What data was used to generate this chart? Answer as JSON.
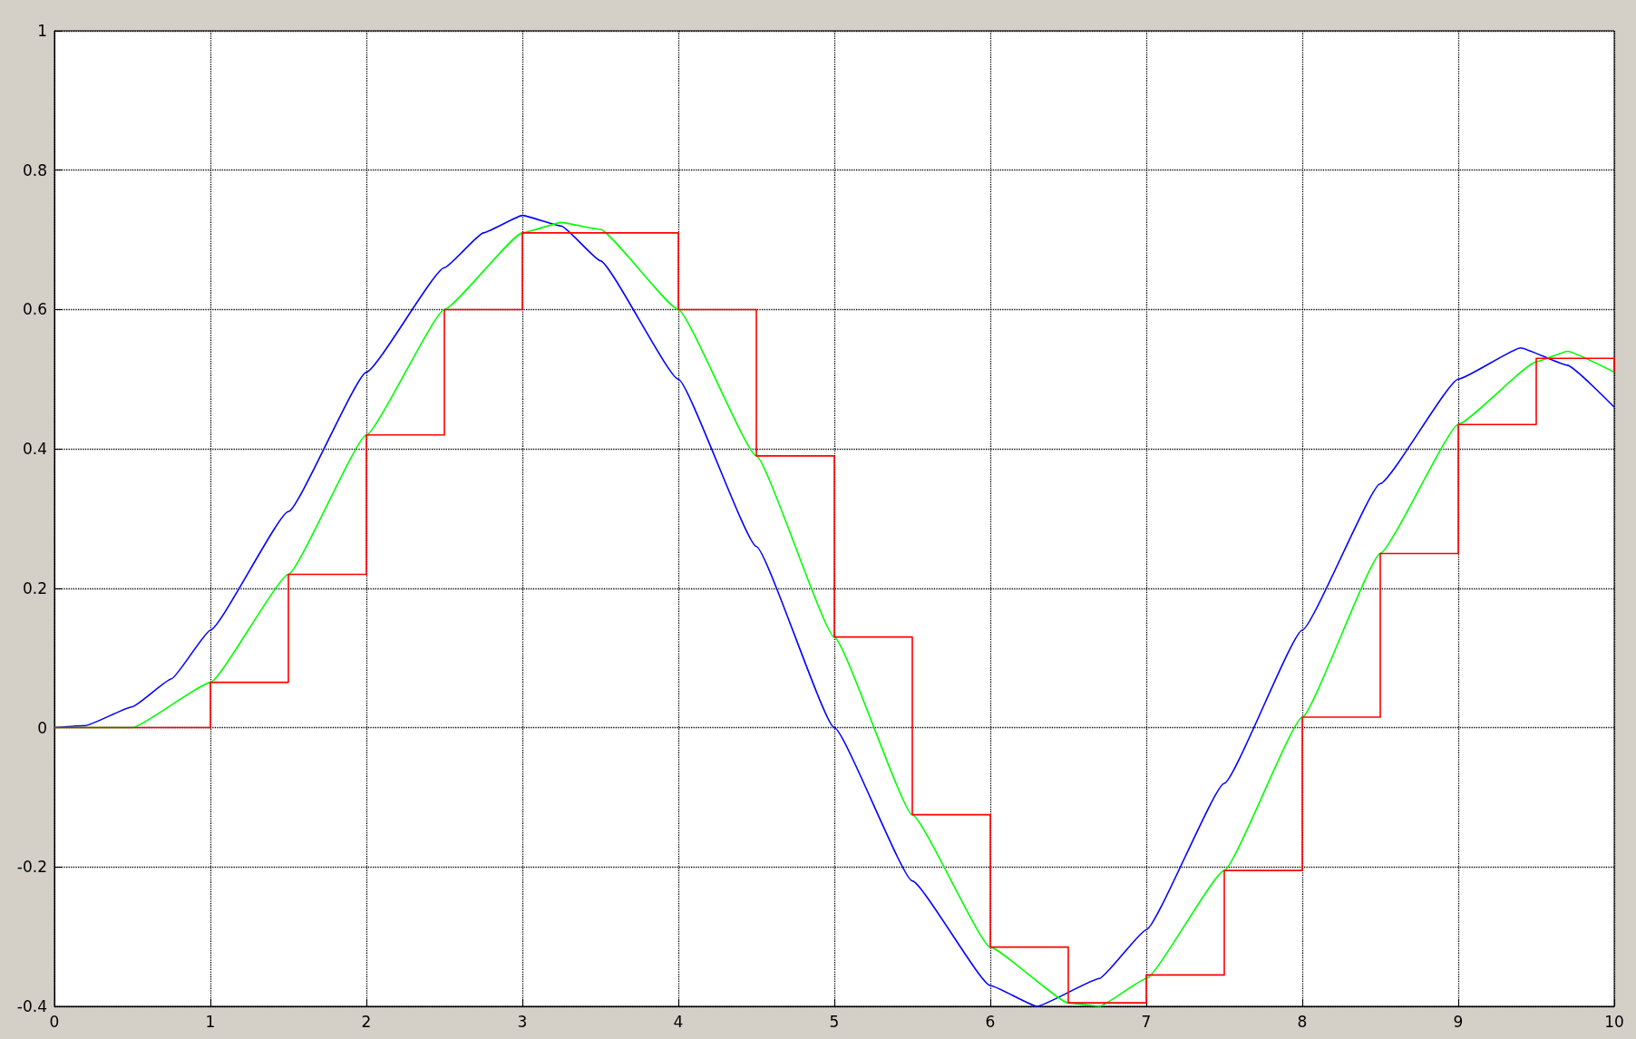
{
  "chart_data": {
    "type": "line",
    "xlim": [
      0,
      10
    ],
    "xticks": [
      0,
      1,
      2,
      3,
      4,
      5,
      6,
      7,
      8,
      9,
      10
    ],
    "ylim": [
      -0.4,
      1
    ],
    "yticks": [
      -0.4,
      -0.2,
      0,
      0.2,
      0.4,
      0.6,
      0.8,
      1
    ],
    "grid": true,
    "marker": "none",
    "line_style": "solid",
    "series": [
      {
        "color": "#0000ff",
        "x": [
          0,
          0.2,
          0.5,
          0.75,
          1,
          1.5,
          2,
          2.5,
          2.75,
          3,
          3.25,
          3.5,
          4,
          4.5,
          5,
          5.5,
          6,
          6.3,
          6.7,
          7,
          7.5,
          8,
          8.5,
          9,
          9.4,
          9.7,
          10
        ],
        "values": [
          0,
          0.003,
          0.03,
          0.07,
          0.14,
          0.31,
          0.51,
          0.66,
          0.71,
          0.735,
          0.72,
          0.67,
          0.5,
          0.26,
          0,
          -0.22,
          -0.37,
          -0.4,
          -0.36,
          -0.29,
          -0.08,
          0.14,
          0.35,
          0.5,
          0.545,
          0.52,
          0.46
        ]
      },
      {
        "color": "#00ff00",
        "x": [
          0,
          0.5,
          1,
          1.5,
          2,
          2.5,
          3,
          3.25,
          3.5,
          4,
          4.5,
          5,
          5.5,
          6,
          6.5,
          6.7,
          7,
          7.5,
          8,
          8.5,
          9,
          9.5,
          9.7,
          10
        ],
        "values": [
          0,
          0,
          0.065,
          0.22,
          0.42,
          0.6,
          0.71,
          0.725,
          0.715,
          0.6,
          0.39,
          0.13,
          -0.125,
          -0.315,
          -0.395,
          -0.4,
          -0.36,
          -0.205,
          0.015,
          0.25,
          0.435,
          0.525,
          0.54,
          0.51
        ]
      },
      {
        "type": "step",
        "color": "#ff0000",
        "x": [
          0,
          0.5,
          1,
          1.5,
          2,
          2.5,
          3,
          3.5,
          4,
          4.5,
          5,
          5.5,
          6,
          6.5,
          7,
          7.5,
          8,
          8.5,
          9,
          9.5,
          10
        ],
        "values": [
          0,
          0,
          0.065,
          0.22,
          0.42,
          0.6,
          0.71,
          0.71,
          0.6,
          0.39,
          0.13,
          -0.125,
          -0.315,
          -0.395,
          -0.355,
          -0.205,
          0.015,
          0.25,
          0.435,
          0.53,
          0.51
        ]
      }
    ]
  }
}
